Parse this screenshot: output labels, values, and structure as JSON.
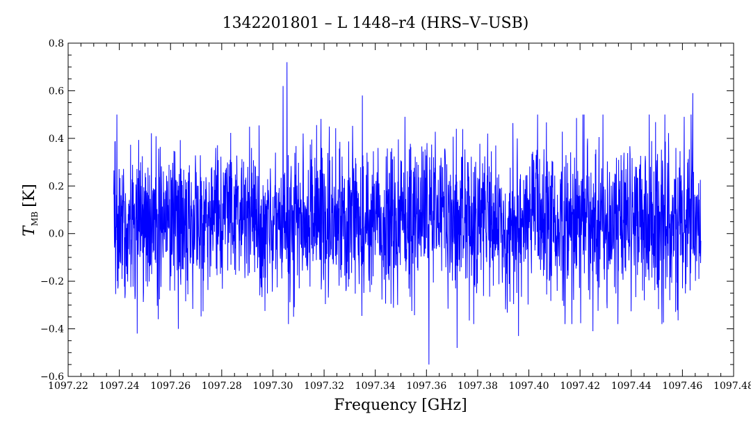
{
  "chart_data": {
    "type": "line",
    "title": "1342201801 – L 1448–r4 (HRS–V–USB)",
    "xlabel": "Frequency [GHz]",
    "ylabel": {
      "main": "T",
      "subscript": "MB",
      "unit": "[K]"
    },
    "xlim": [
      1097.22,
      1097.48
    ],
    "ylim": [
      -0.6,
      0.8
    ],
    "x_ticks": [
      1097.22,
      1097.24,
      1097.26,
      1097.28,
      1097.3,
      1097.32,
      1097.34,
      1097.36,
      1097.38,
      1097.4,
      1097.42,
      1097.44,
      1097.46,
      1097.48
    ],
    "x_tick_labels": [
      "1097.22",
      "1097.24",
      "1097.26",
      "1097.28",
      "1097.30",
      "1097.32",
      "1097.34",
      "1097.36",
      "1097.38",
      "1097.40",
      "1097.42",
      "1097.44",
      "1097.46",
      "1097.48"
    ],
    "y_ticks": [
      -0.6,
      -0.4,
      -0.2,
      0.0,
      0.2,
      0.4,
      0.6,
      0.8
    ],
    "y_tick_labels": [
      "−0.6",
      "−0.4",
      "−0.2",
      "0.0",
      "0.2",
      "0.4",
      "0.6",
      "0.8"
    ],
    "grid": false,
    "series": [
      {
        "color": "#0000ff",
        "x_start": 1097.2378,
        "x_end": 1097.4672,
        "baseline": 0.06,
        "noise_rms": 0.16,
        "notable_points": [
          {
            "x": 1097.3055,
            "y": 0.72
          },
          {
            "x": 1097.304,
            "y": 0.62
          },
          {
            "x": 1097.335,
            "y": 0.58
          },
          {
            "x": 1097.464,
            "y": 0.59
          },
          {
            "x": 1097.361,
            "y": -0.55
          },
          {
            "x": 1097.372,
            "y": -0.48
          },
          {
            "x": 1097.247,
            "y": -0.42
          },
          {
            "x": 1097.396,
            "y": -0.43
          },
          {
            "x": 1097.425,
            "y": -0.41
          },
          {
            "x": 1097.263,
            "y": -0.4
          }
        ]
      }
    ]
  }
}
